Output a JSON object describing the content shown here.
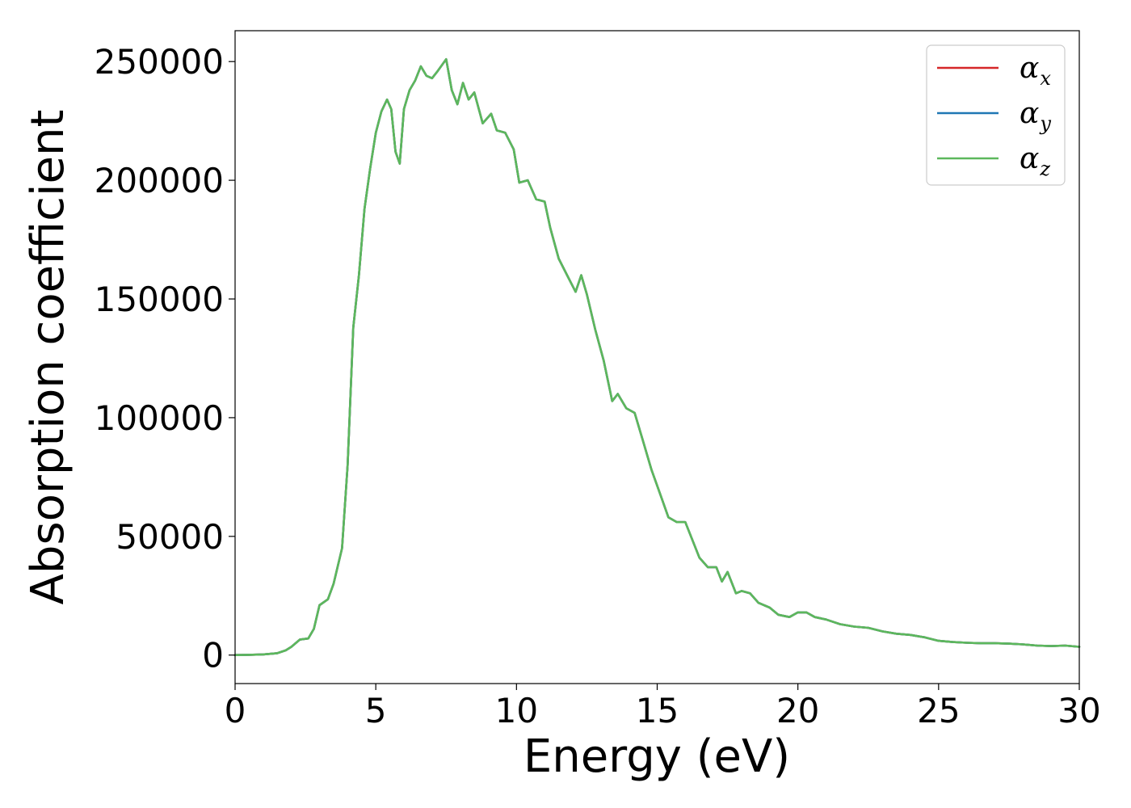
{
  "chart_data": {
    "type": "line",
    "title": "",
    "xlabel": "Energy (eV)",
    "ylabel": "Absorption coefficient",
    "xlim": [
      0,
      30
    ],
    "ylim": [
      -12000,
      263000
    ],
    "xticks": [
      0,
      5,
      10,
      15,
      20,
      25,
      30
    ],
    "yticks": [
      0,
      50000,
      100000,
      150000,
      200000,
      250000
    ],
    "grid": false,
    "legend": "top-right",
    "x": [
      0,
      0.5,
      1.0,
      1.5,
      1.8,
      2.0,
      2.3,
      2.6,
      2.8,
      3.0,
      3.3,
      3.5,
      3.8,
      4.0,
      4.2,
      4.4,
      4.6,
      4.8,
      5.0,
      5.2,
      5.4,
      5.55,
      5.7,
      5.85,
      6.0,
      6.2,
      6.4,
      6.6,
      6.8,
      7.0,
      7.2,
      7.5,
      7.7,
      7.9,
      8.1,
      8.3,
      8.5,
      8.8,
      9.1,
      9.3,
      9.6,
      9.9,
      10.1,
      10.4,
      10.7,
      11.0,
      11.2,
      11.5,
      11.8,
      12.1,
      12.3,
      12.5,
      12.8,
      13.1,
      13.4,
      13.6,
      13.9,
      14.2,
      14.5,
      14.8,
      15.1,
      15.4,
      15.7,
      16.0,
      16.2,
      16.5,
      16.8,
      17.1,
      17.3,
      17.5,
      17.8,
      18.0,
      18.3,
      18.6,
      19.0,
      19.3,
      19.7,
      20.0,
      20.3,
      20.6,
      21.0,
      21.5,
      22.0,
      22.5,
      23.0,
      23.5,
      24.0,
      24.5,
      25.0,
      25.5,
      26.0,
      26.5,
      27.0,
      27.5,
      28.0,
      28.5,
      29.0,
      29.5,
      30.0
    ],
    "series": [
      {
        "name": "α_x",
        "color": "#d62728",
        "y": [
          0,
          100,
          300,
          800,
          2000,
          3500,
          6500,
          7000,
          11000,
          21000,
          23500,
          30000,
          45000,
          80000,
          138000,
          160000,
          188000,
          205000,
          220000,
          229000,
          234000,
          230000,
          212000,
          207000,
          230000,
          238000,
          242000,
          248000,
          244000,
          243000,
          246000,
          251000,
          238000,
          232000,
          241000,
          234000,
          237000,
          224000,
          228000,
          221000,
          220000,
          213000,
          199000,
          200000,
          192000,
          191000,
          180000,
          167000,
          160000,
          153000,
          160000,
          152000,
          137000,
          124000,
          107000,
          110000,
          104000,
          102000,
          90000,
          78000,
          68000,
          58000,
          56000,
          56000,
          50000,
          41000,
          37000,
          37000,
          31000,
          35000,
          26000,
          27000,
          26000,
          22000,
          20000,
          17000,
          16000,
          18000,
          18000,
          16000,
          15000,
          13000,
          12000,
          11500,
          10000,
          9000,
          8500,
          7500,
          6000,
          5500,
          5200,
          5000,
          5000,
          4800,
          4500,
          4000,
          3800,
          4000,
          3500
        ]
      },
      {
        "name": "α_y",
        "color": "#1f77b4",
        "y": [
          0,
          100,
          300,
          800,
          2000,
          3500,
          6500,
          7000,
          11000,
          21000,
          23500,
          30000,
          45000,
          80000,
          138000,
          160000,
          188000,
          205000,
          220000,
          229000,
          234000,
          230000,
          212000,
          207000,
          230000,
          238000,
          242000,
          248000,
          244000,
          243000,
          246000,
          251000,
          238000,
          232000,
          241000,
          234000,
          237000,
          224000,
          228000,
          221000,
          220000,
          213000,
          199000,
          200000,
          192000,
          191000,
          180000,
          167000,
          160000,
          153000,
          160000,
          152000,
          137000,
          124000,
          107000,
          110000,
          104000,
          102000,
          90000,
          78000,
          68000,
          58000,
          56000,
          56000,
          50000,
          41000,
          37000,
          37000,
          31000,
          35000,
          26000,
          27000,
          26000,
          22000,
          20000,
          17000,
          16000,
          18000,
          18000,
          16000,
          15000,
          13000,
          12000,
          11500,
          10000,
          9000,
          8500,
          7500,
          6000,
          5500,
          5200,
          5000,
          5000,
          4800,
          4500,
          4000,
          3800,
          4000,
          3500
        ]
      },
      {
        "name": "α_z",
        "color": "#5cb85c",
        "y": [
          0,
          100,
          300,
          800,
          2000,
          3500,
          6500,
          7000,
          11000,
          21000,
          23500,
          30000,
          45000,
          80000,
          138000,
          160000,
          188000,
          205000,
          220000,
          229000,
          234000,
          230000,
          212000,
          207000,
          230000,
          238000,
          242000,
          248000,
          244000,
          243000,
          246000,
          251000,
          238000,
          232000,
          241000,
          234000,
          237000,
          224000,
          228000,
          221000,
          220000,
          213000,
          199000,
          200000,
          192000,
          191000,
          180000,
          167000,
          160000,
          153000,
          160000,
          152000,
          137000,
          124000,
          107000,
          110000,
          104000,
          102000,
          90000,
          78000,
          68000,
          58000,
          56000,
          56000,
          50000,
          41000,
          37000,
          37000,
          31000,
          35000,
          26000,
          27000,
          26000,
          22000,
          20000,
          17000,
          16000,
          18000,
          18000,
          16000,
          15000,
          13000,
          12000,
          11500,
          10000,
          9000,
          8500,
          7500,
          6000,
          5500,
          5200,
          5000,
          5000,
          4800,
          4500,
          4000,
          3800,
          4000,
          3500
        ]
      }
    ],
    "legend_entries": [
      {
        "base": "α",
        "sub": "x"
      },
      {
        "base": "α",
        "sub": "y"
      },
      {
        "base": "α",
        "sub": "z"
      }
    ]
  }
}
